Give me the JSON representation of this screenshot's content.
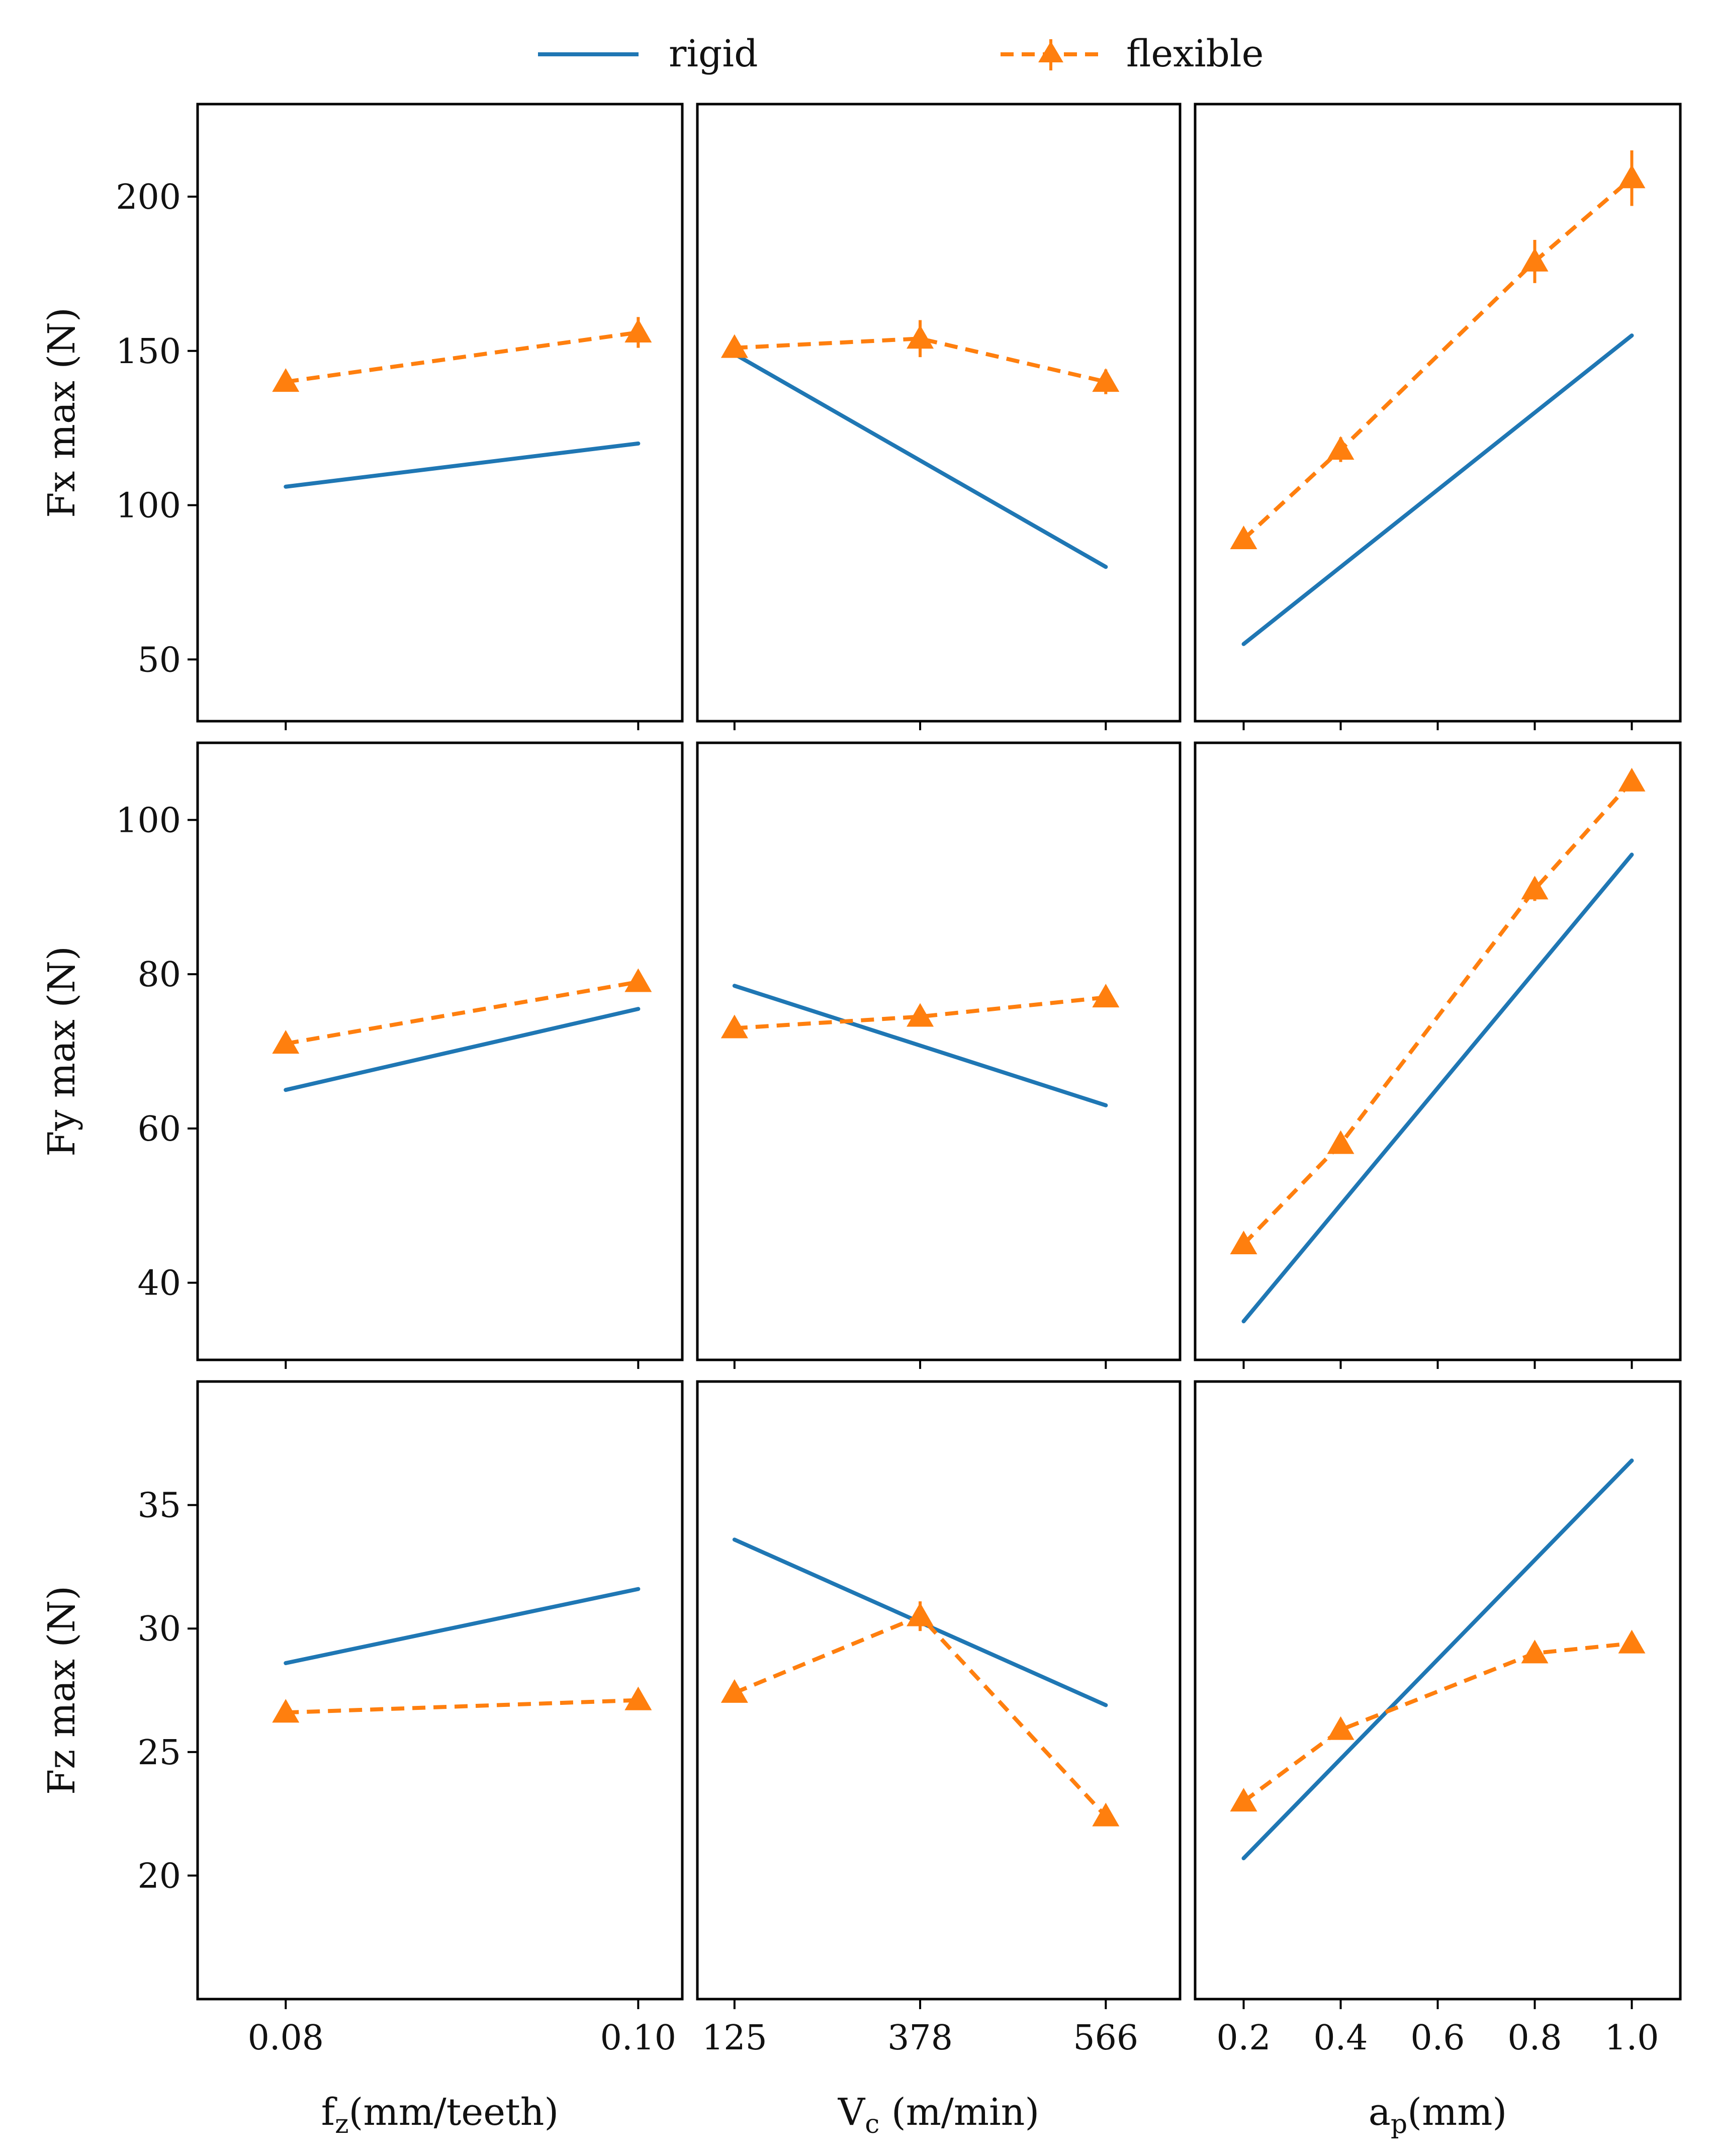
{
  "legend": {
    "rigid": "rigid",
    "flexible": "flexible"
  },
  "colors": {
    "rigid": "#1f77b4",
    "flexible": "#ff7f0e"
  },
  "chart_data": {
    "type": "line",
    "grid": false,
    "legend_position": "top-center",
    "series_names": [
      "rigid",
      "flexible"
    ],
    "rows": [
      {
        "ylabel": "Fx max (N)",
        "ylim": [
          30,
          230
        ],
        "yticks": [
          50,
          100,
          150,
          200
        ]
      },
      {
        "ylabel": "Fy max (N)",
        "ylim": [
          30,
          110
        ],
        "yticks": [
          40,
          60,
          80,
          100
        ]
      },
      {
        "ylabel": "Fz max (N)",
        "ylim": [
          15,
          40
        ],
        "yticks": [
          20,
          25,
          30,
          35
        ]
      }
    ],
    "columns": [
      {
        "xlabel": "f",
        "xlabel_sub": "z",
        "xlabel_rest": "(mm/teeth)",
        "xlim": [
          0.075,
          0.1025
        ],
        "xticks": [
          0.08,
          0.1
        ],
        "xtick_labels": [
          "0.08",
          "0.10"
        ]
      },
      {
        "xlabel": "V",
        "xlabel_sub": "c",
        "xlabel_rest": " (m/min)",
        "xlim": [
          0,
          3.25
        ],
        "xticks": [
          0.25,
          1.5,
          2.75
        ],
        "xtick_labels": [
          "125",
          "378",
          "566"
        ],
        "categories": [
          "125",
          "378",
          "566"
        ]
      },
      {
        "xlabel": "a",
        "xlabel_sub": "p",
        "xlabel_rest": "(mm)",
        "xlim": [
          0.1,
          1.1
        ],
        "xticks": [
          0.2,
          0.4,
          0.6,
          0.8,
          1.0
        ],
        "xtick_labels": [
          "0.2",
          "0.4",
          "0.6",
          "0.8",
          "1.0"
        ]
      }
    ],
    "panels": [
      {
        "row": 0,
        "col": 0,
        "rigid": {
          "x": [
            0.08,
            0.1
          ],
          "y": [
            106,
            120
          ]
        },
        "flexible": {
          "x": [
            0.08,
            0.1
          ],
          "y": [
            140,
            156
          ],
          "err": [
            3,
            5
          ]
        }
      },
      {
        "row": 0,
        "col": 1,
        "rigid": {
          "x": [
            "125",
            "566"
          ],
          "y": [
            149,
            80
          ]
        },
        "flexible": {
          "x": [
            "125",
            "378",
            "566"
          ],
          "y": [
            151,
            154,
            140
          ],
          "err": [
            3,
            6,
            4
          ]
        }
      },
      {
        "row": 0,
        "col": 2,
        "rigid": {
          "x": [
            0.2,
            1.0
          ],
          "y": [
            55,
            155
          ]
        },
        "flexible": {
          "x": [
            0.2,
            0.4,
            0.8,
            1.0
          ],
          "y": [
            89,
            118,
            179,
            206
          ],
          "err": [
            3,
            4,
            7,
            9
          ]
        }
      },
      {
        "row": 1,
        "col": 0,
        "rigid": {
          "x": [
            0.08,
            0.1
          ],
          "y": [
            65,
            75.5
          ]
        },
        "flexible": {
          "x": [
            0.08,
            0.1
          ],
          "y": [
            71,
            79
          ],
          "err": [
            1,
            1
          ]
        }
      },
      {
        "row": 1,
        "col": 1,
        "rigid": {
          "x": [
            "125",
            "566"
          ],
          "y": [
            78.5,
            63
          ]
        },
        "flexible": {
          "x": [
            "125",
            "378",
            "566"
          ],
          "y": [
            73,
            74.5,
            77
          ],
          "err": [
            1,
            1,
            1
          ]
        }
      },
      {
        "row": 1,
        "col": 2,
        "rigid": {
          "x": [
            0.2,
            1.0
          ],
          "y": [
            35,
            95.5
          ]
        },
        "flexible": {
          "x": [
            0.2,
            0.4,
            0.8,
            1.0
          ],
          "y": [
            45,
            58,
            91,
            105
          ],
          "err": [
            1,
            1,
            1.5,
            1
          ]
        }
      },
      {
        "row": 2,
        "col": 0,
        "rigid": {
          "x": [
            0.08,
            0.1
          ],
          "y": [
            28.6,
            31.6
          ]
        },
        "flexible": {
          "x": [
            0.08,
            0.1
          ],
          "y": [
            26.6,
            27.1
          ],
          "err": [
            0.3,
            0.3
          ]
        }
      },
      {
        "row": 2,
        "col": 1,
        "rigid": {
          "x": [
            "125",
            "566"
          ],
          "y": [
            33.6,
            26.9
          ]
        },
        "flexible": {
          "x": [
            "125",
            "378",
            "566"
          ],
          "y": [
            27.4,
            30.5,
            22.4
          ],
          "err": [
            0.3,
            0.6,
            0.3
          ]
        }
      },
      {
        "row": 2,
        "col": 2,
        "rigid": {
          "x": [
            0.2,
            1.0
          ],
          "y": [
            20.7,
            36.8
          ]
        },
        "flexible": {
          "x": [
            0.2,
            0.4,
            0.8,
            1.0
          ],
          "y": [
            23,
            25.9,
            29,
            29.4
          ],
          "err": [
            0.3,
            0.3,
            0.4,
            0.4
          ]
        }
      }
    ]
  }
}
